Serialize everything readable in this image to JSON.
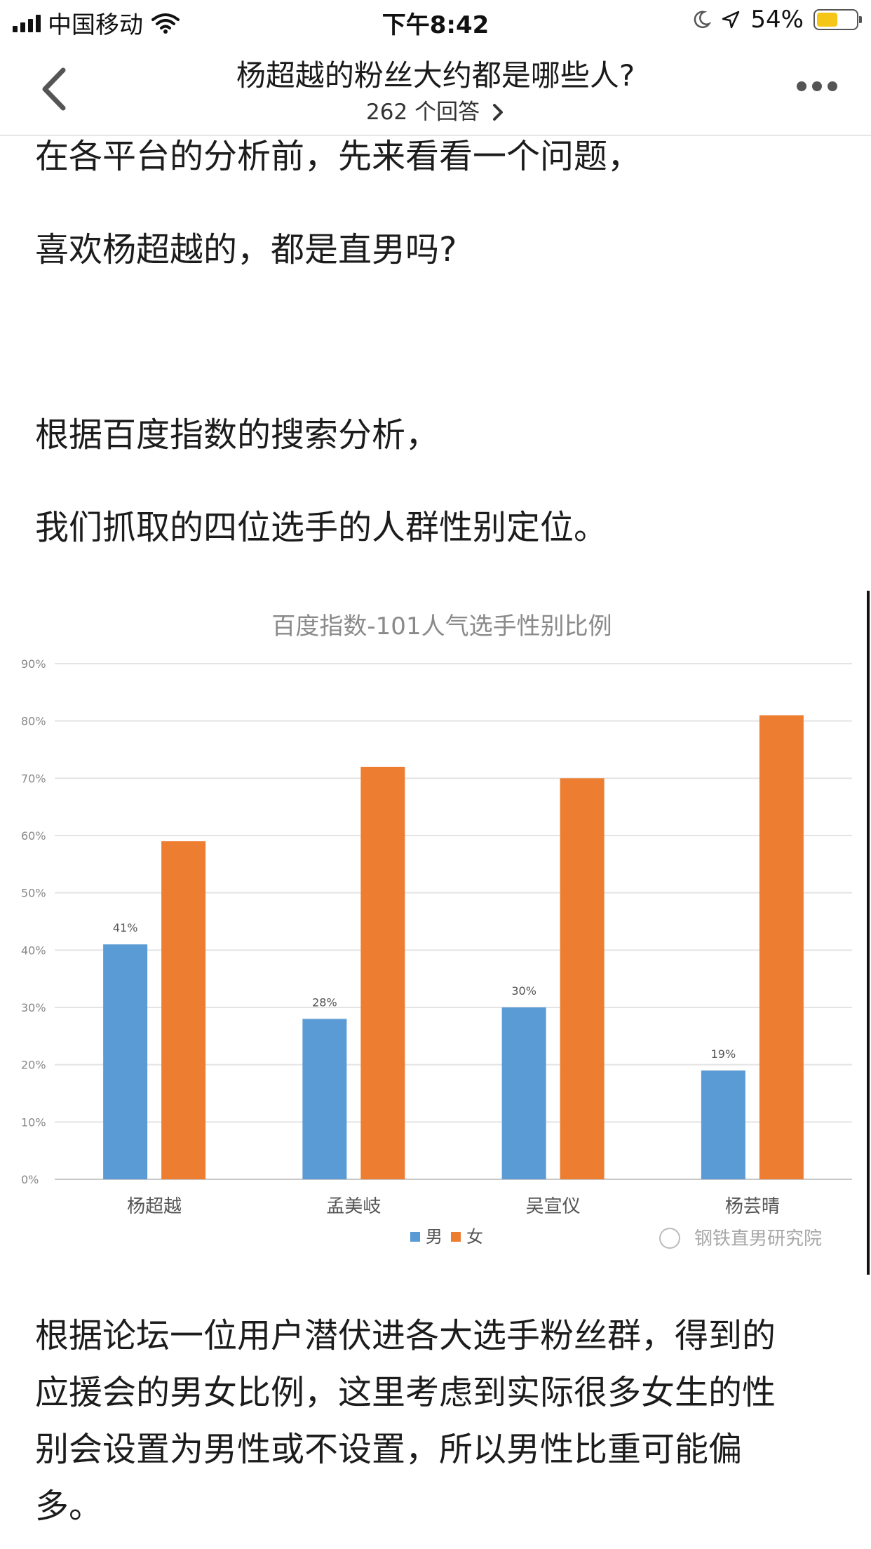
{
  "status_bar": {
    "carrier": "中国移动",
    "time": "下午8:42",
    "battery": "54%",
    "battery_level": 0.54
  },
  "nav": {
    "title": "杨超越的粉丝大约都是哪些人?",
    "answers": "262 个回答",
    "icons": {
      "back": "chevron-left-icon",
      "answers_arrow": "chevron-right-icon",
      "more": "more-dots-icon"
    }
  },
  "article": {
    "p1": "在各平台的分析前，先来看看一个问题，",
    "p2": "喜欢杨超越的，都是直男吗?",
    "p3": "根据百度指数的搜索分析，",
    "p4": "我们抓取的四位选手的人群性别定位。",
    "p5_lines": [
      "根据论坛一位用户潜伏进各大选手粉丝群，得到的",
      "应援会的男女比例，这里考虑到实际很多女生的性",
      "别会设置为男性或不设置，所以男性比重可能偏",
      "多。"
    ]
  },
  "chart_data": {
    "type": "bar",
    "title": "百度指数-101人气选手性别比例",
    "categories": [
      "杨超越",
      "孟美岐",
      "吴宣仪",
      "杨芸晴"
    ],
    "series": [
      {
        "name": "男",
        "values": [
          41,
          28,
          30,
          19
        ],
        "labels": [
          "41%",
          "28%",
          "30%",
          "19%"
        ],
        "color": "#5b9bd5"
      },
      {
        "name": "女",
        "values": [
          59,
          72,
          70,
          81
        ],
        "labels": [
          null,
          null,
          null,
          null
        ],
        "color": "#ed7d31"
      }
    ],
    "ylim": [
      0,
      90
    ],
    "y_ticks": [
      "0%",
      "10%",
      "20%",
      "30%",
      "40%",
      "50%",
      "60%",
      "70%",
      "80%",
      "90%"
    ],
    "grid": true,
    "legend": "bottom-center",
    "watermark": "钢铁直男研究院"
  }
}
